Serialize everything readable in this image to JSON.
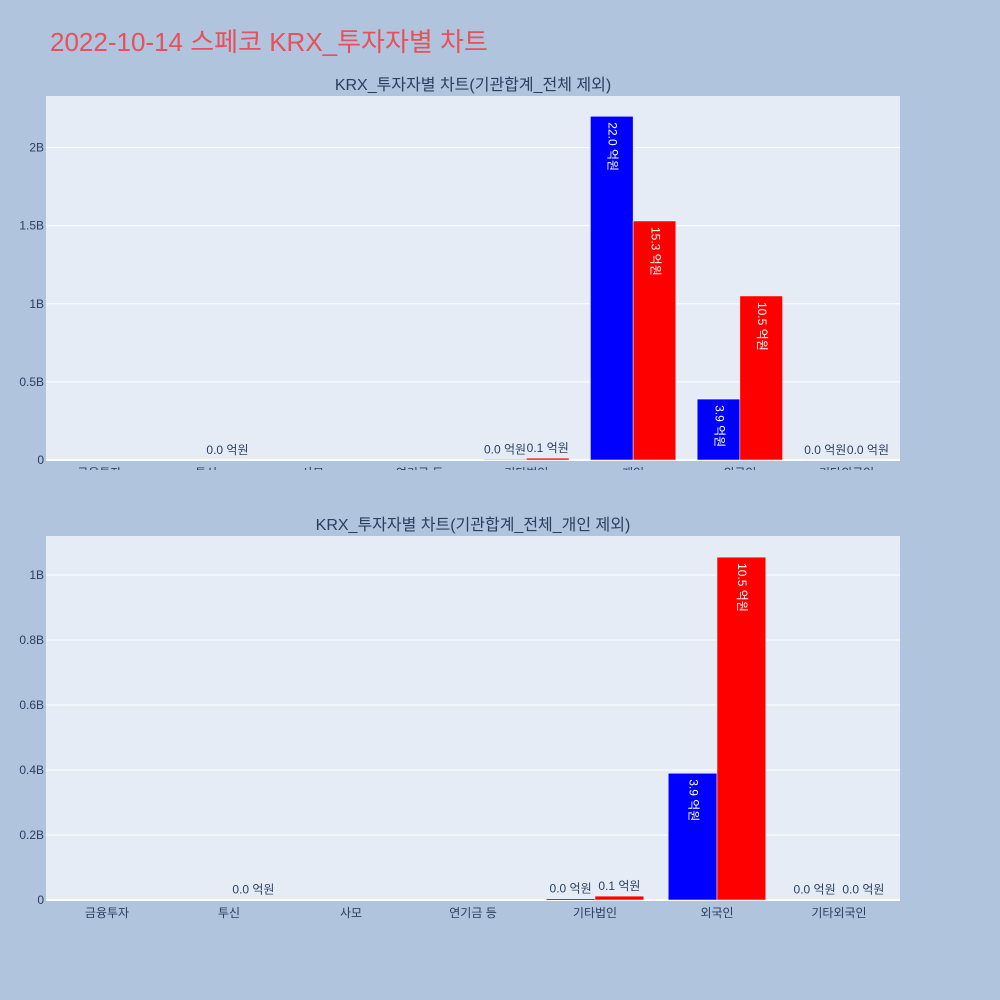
{
  "page": {
    "title": "2022-10-14 스페코 KRX_투자자별 차트"
  },
  "colors": {
    "background": "#b0c4de",
    "plot_bg": "#e5ecf6",
    "buy": "#0000ff",
    "sell": "#ff0000",
    "title": "#e8505b"
  },
  "chart_data": [
    {
      "type": "bar",
      "title": "KRX_투자자별 차트(기관합계_전체 제외)",
      "categories": [
        "금융투자",
        "투신",
        "사모",
        "연기금 등",
        "기타법인",
        "개인",
        "외국인",
        "기타외국인"
      ],
      "series": [
        {
          "color": "#0000ff",
          "values": [
            0,
            0,
            0,
            0,
            0.004,
            2.2,
            0.39,
            0.001
          ],
          "labels": [
            "",
            "",
            "",
            "",
            "0.0 억원",
            "22.0 억원",
            "3.9 억원",
            "0.0 억원"
          ]
        },
        {
          "color": "#ff0000",
          "values": [
            0,
            0.001,
            0,
            0,
            0.012,
            1.53,
            1.05,
            0.001
          ],
          "labels": [
            "",
            "0.0 억원",
            "",
            "",
            "0.1 억원",
            "15.3 억원",
            "10.5 억원",
            "0.0 억원"
          ]
        }
      ],
      "ylim": [
        0,
        2.33
      ],
      "yticks": [
        0,
        0.5,
        1,
        1.5,
        2
      ],
      "yticklabels": [
        "0",
        "0.5B",
        "1B",
        "1.5B",
        "2B"
      ]
    },
    {
      "type": "bar",
      "title": "KRX_투자자별 차트(기관합계_전체_개인 제외)",
      "categories": [
        "금융투자",
        "투신",
        "사모",
        "연기금 등",
        "기타법인",
        "외국인",
        "기타외국인"
      ],
      "series": [
        {
          "color": "#0000ff",
          "values": [
            0,
            0,
            0,
            0,
            0.004,
            0.39,
            0.001
          ],
          "labels": [
            "",
            "",
            "",
            "",
            "0.0 억원",
            "3.9 억원",
            "0.0 억원"
          ]
        },
        {
          "color": "#ff0000",
          "values": [
            0,
            0.001,
            0,
            0,
            0.012,
            1.055,
            0.001
          ],
          "labels": [
            "",
            "0.0 억원",
            "",
            "",
            "0.1 억원",
            "10.5 억원",
            "0.0 억원"
          ]
        }
      ],
      "ylim": [
        0,
        1.12
      ],
      "yticks": [
        0,
        0.2,
        0.4,
        0.6,
        0.8,
        1
      ],
      "yticklabels": [
        "0",
        "0.2B",
        "0.4B",
        "0.6B",
        "0.8B",
        "1B"
      ]
    }
  ]
}
